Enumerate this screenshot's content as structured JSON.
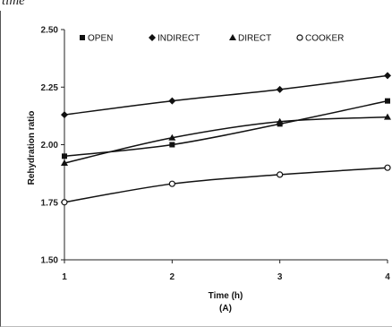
{
  "caption": "time",
  "chart_data": {
    "type": "line",
    "panel_label": "(A)",
    "xlabel": "Time (h)",
    "ylabel": "Rehydration ratio",
    "x": [
      1,
      2,
      3,
      4
    ],
    "xlim": [
      1,
      4
    ],
    "ylim": [
      1.5,
      2.5
    ],
    "yticks": [
      "1.50",
      "1.75",
      "2.00",
      "2.25",
      "2.50"
    ],
    "xticks": [
      "1",
      "2",
      "3",
      "4"
    ],
    "grid": false,
    "legend_position": "top",
    "series": [
      {
        "name": "OPEN",
        "marker": "square",
        "values": [
          1.95,
          2.0,
          2.09,
          2.19
        ]
      },
      {
        "name": "INDIRECT",
        "marker": "diamond",
        "values": [
          2.13,
          2.19,
          2.24,
          2.3
        ]
      },
      {
        "name": "DIRECT",
        "marker": "triangle",
        "values": [
          1.92,
          2.03,
          2.1,
          2.12
        ]
      },
      {
        "name": "COOKER",
        "marker": "circle-open",
        "values": [
          1.75,
          1.83,
          1.87,
          1.9
        ]
      }
    ]
  }
}
